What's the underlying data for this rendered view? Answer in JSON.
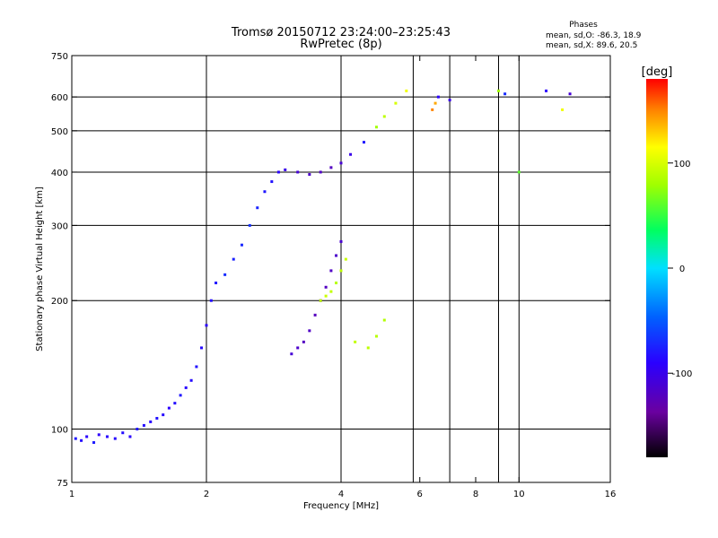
{
  "chart_data": {
    "type": "scatter",
    "title": "Tromsø 20150712 23:24:00–23:25:43",
    "subtitle": "RwPretec (8p)",
    "xlabel": "Frequency [MHz]",
    "ylabel": "Stationary phase Virtual Height [km]",
    "x_scale": "log",
    "y_scale": "log",
    "xlim": [
      1,
      16
    ],
    "ylim": [
      75,
      750
    ],
    "x_ticks": [
      1,
      2,
      4,
      6,
      8,
      9,
      10,
      16
    ],
    "x_ticks_labeled": [
      1,
      2,
      4,
      6,
      8,
      10,
      16
    ],
    "x_gridlines": [
      2,
      4,
      5.8,
      7,
      9,
      10
    ],
    "y_ticks": [
      75,
      100,
      200,
      300,
      400,
      500,
      600,
      750
    ],
    "y_gridlines": [
      100,
      200,
      300,
      400,
      500,
      600
    ],
    "grid": true,
    "phase_stats": {
      "heading": "Phases",
      "line_O": "mean, sd,O: -86.3, 18.9",
      "line_X": "mean, sd,X:  89.6, 20.5"
    },
    "colorbar": {
      "label": "[deg]",
      "range": [
        -180,
        180
      ],
      "ticks": [
        100,
        0,
        -100
      ],
      "colormap": "rainbow"
    },
    "series": [
      {
        "x": [
          1.02,
          1.05,
          1.08,
          1.12,
          1.15,
          1.2,
          1.25,
          1.3,
          1.35,
          1.4,
          1.45,
          1.5,
          1.55,
          1.6,
          1.65,
          1.7,
          1.75,
          1.8,
          1.85,
          1.9,
          1.95,
          2.0,
          2.05,
          2.1
        ],
        "y": [
          95,
          94,
          96,
          93,
          97,
          96,
          95,
          98,
          96,
          100,
          102,
          104,
          106,
          108,
          112,
          115,
          120,
          125,
          130,
          140,
          155,
          175,
          200,
          220
        ],
        "phase": [
          -80,
          -85,
          -90,
          -78,
          -92,
          -88,
          -86,
          -84,
          -90,
          -80,
          -85,
          -88,
          -82,
          -86,
          -90,
          -84,
          -80,
          -88,
          -85,
          -82,
          -86,
          -90,
          -84,
          -80
        ]
      },
      {
        "x": [
          2.2,
          2.3,
          2.4,
          2.5,
          2.6,
          2.7,
          2.8,
          2.9,
          3.0,
          3.2,
          3.4,
          3.6,
          3.8,
          4.0,
          4.2,
          4.5,
          4.8,
          5.0,
          5.3,
          5.6
        ],
        "y": [
          230,
          250,
          270,
          300,
          330,
          360,
          380,
          400,
          405,
          400,
          395,
          400,
          410,
          420,
          440,
          470,
          510,
          540,
          580,
          620
        ],
        "phase": [
          -70,
          -75,
          -72,
          -68,
          -74,
          -80,
          -82,
          -90,
          -100,
          -110,
          -115,
          -118,
          -120,
          -110,
          -100,
          -80,
          80,
          90,
          100,
          110
        ]
      },
      {
        "x": [
          3.1,
          3.2,
          3.3,
          3.4,
          3.5,
          3.6,
          3.7,
          3.8,
          3.9,
          4.0
        ],
        "y": [
          150,
          155,
          160,
          170,
          185,
          200,
          215,
          235,
          255,
          275
        ],
        "phase": [
          -110,
          -115,
          -120,
          -118,
          -122,
          -125,
          -120,
          -118,
          -115,
          -112
        ]
      },
      {
        "x": [
          3.6,
          3.7,
          3.8,
          3.9,
          4.0,
          4.1,
          4.3,
          4.6,
          4.8,
          5.0
        ],
        "y": [
          200,
          205,
          210,
          220,
          235,
          250,
          160,
          155,
          165,
          180
        ],
        "phase": [
          90,
          95,
          92,
          88,
          90,
          94,
          92,
          90,
          88,
          86
        ]
      },
      {
        "x": [
          6.4,
          6.5,
          6.6,
          7.0,
          9.0,
          9.3,
          10.0,
          11.5,
          12.5,
          13.0
        ],
        "y": [
          560,
          580,
          600,
          590,
          620,
          610,
          400,
          620,
          560,
          610
        ],
        "phase": [
          150,
          140,
          -90,
          -100,
          80,
          -70,
          60,
          -90,
          110,
          -110
        ]
      }
    ]
  }
}
